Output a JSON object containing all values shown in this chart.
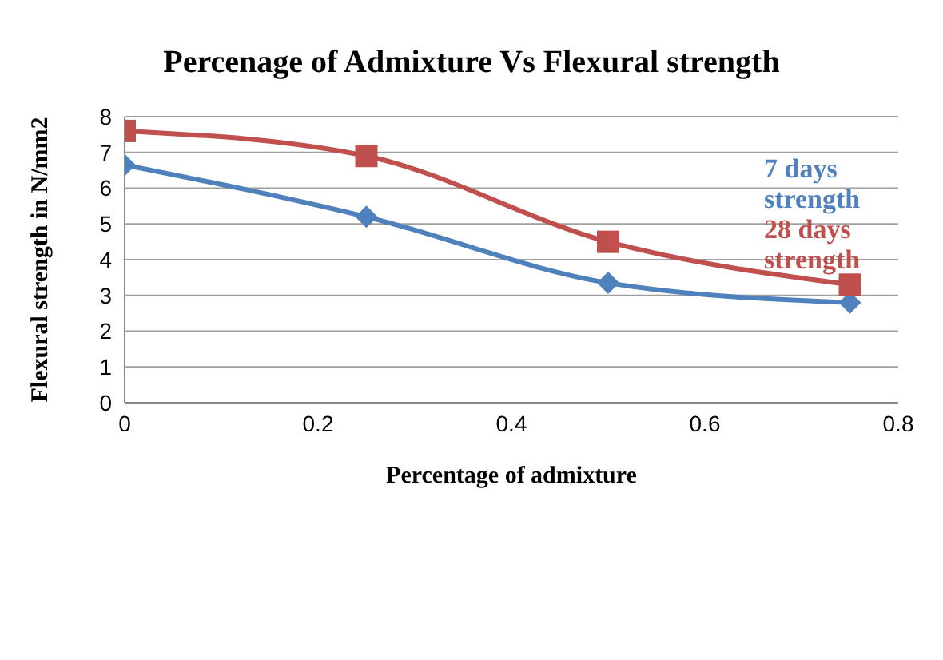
{
  "chart_data": {
    "type": "line",
    "title": "Percenage of Admixture Vs Flexural strength",
    "xlabel": "Percentage of admixture",
    "ylabel": "Flexural strength in N/mm2",
    "x": [
      0,
      0.25,
      0.5,
      0.75
    ],
    "series": [
      {
        "name": "7 days strength",
        "color": "#4f81bd",
        "marker": "diamond",
        "values": [
          6.65,
          5.2,
          3.35,
          2.8
        ]
      },
      {
        "name": "28 days strength",
        "color": "#c0504d",
        "marker": "square",
        "values": [
          7.6,
          6.9,
          4.5,
          3.3
        ]
      }
    ],
    "xlim": [
      0,
      0.8
    ],
    "xticks": [
      0,
      0.2,
      0.4,
      0.6,
      0.8
    ],
    "ylim": [
      0,
      8
    ],
    "yticks": [
      0,
      1,
      2,
      3,
      4,
      5,
      6,
      7,
      8
    ],
    "grid": "y",
    "legend": "right"
  }
}
